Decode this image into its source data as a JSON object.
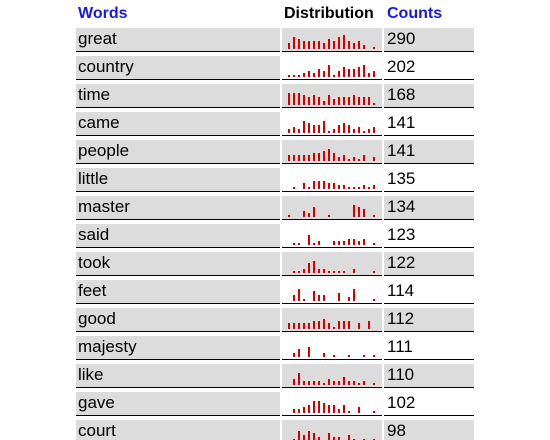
{
  "header": {
    "words": "Words",
    "distribution": "Distribution",
    "counts": "Counts"
  },
  "colors": {
    "header_accent": "#1a1ad6",
    "bar": "#d40000",
    "shaded_row": "#dcdcdc"
  },
  "rows": [
    {
      "word": "great",
      "count": "290",
      "dist": [
        3,
        6,
        5,
        4,
        4,
        4,
        4,
        3,
        5,
        4,
        6,
        7,
        4,
        3,
        4,
        2,
        0,
        1
      ]
    },
    {
      "word": "country",
      "count": "202",
      "dist": [
        1,
        1,
        1,
        2,
        3,
        2,
        4,
        3,
        6,
        1,
        3,
        5,
        4,
        4,
        5,
        6,
        2,
        3
      ]
    },
    {
      "word": "time",
      "count": "168",
      "dist": [
        6,
        6,
        6,
        5,
        4,
        5,
        4,
        2,
        5,
        3,
        4,
        4,
        4,
        5,
        4,
        4,
        4,
        1
      ]
    },
    {
      "word": "came",
      "count": "141",
      "dist": [
        2,
        3,
        2,
        6,
        5,
        4,
        4,
        6,
        1,
        2,
        4,
        5,
        4,
        2,
        3,
        1,
        2,
        3
      ]
    },
    {
      "word": "people",
      "count": "141",
      "dist": [
        3,
        3,
        3,
        3,
        3,
        4,
        4,
        5,
        6,
        4,
        2,
        3,
        1,
        2,
        1,
        3,
        0,
        2
      ]
    },
    {
      "word": "little",
      "count": "135",
      "dist": [
        0,
        1,
        0,
        3,
        1,
        4,
        4,
        4,
        3,
        3,
        2,
        2,
        1,
        1,
        1,
        2,
        1,
        2
      ]
    },
    {
      "word": "master",
      "count": "134",
      "dist": [
        1,
        0,
        0,
        3,
        2,
        5,
        0,
        0,
        1,
        0,
        0,
        0,
        0,
        6,
        5,
        4,
        0,
        1
      ]
    },
    {
      "word": "said",
      "count": "123",
      "dist": [
        0,
        1,
        1,
        0,
        5,
        1,
        2,
        0,
        0,
        2,
        2,
        2,
        3,
        3,
        2,
        3,
        0,
        1
      ]
    },
    {
      "word": "took",
      "count": "122",
      "dist": [
        0,
        1,
        1,
        2,
        5,
        6,
        2,
        2,
        1,
        1,
        1,
        1,
        0,
        2,
        0,
        0,
        0,
        1
      ]
    },
    {
      "word": "feet",
      "count": "114",
      "dist": [
        0,
        3,
        6,
        1,
        0,
        5,
        3,
        3,
        0,
        0,
        4,
        0,
        2,
        6,
        0,
        0,
        0,
        1
      ]
    },
    {
      "word": "good",
      "count": "112",
      "dist": [
        3,
        3,
        3,
        3,
        3,
        4,
        4,
        5,
        3,
        1,
        4,
        4,
        4,
        0,
        3,
        0,
        4,
        0
      ]
    },
    {
      "word": "majesty",
      "count": "111",
      "dist": [
        0,
        2,
        4,
        0,
        5,
        0,
        0,
        2,
        0,
        1,
        0,
        0,
        1,
        0,
        0,
        1,
        0,
        1
      ]
    },
    {
      "word": "like",
      "count": "110",
      "dist": [
        0,
        3,
        6,
        2,
        2,
        2,
        2,
        1,
        3,
        2,
        2,
        4,
        2,
        2,
        1,
        2,
        0,
        1
      ]
    },
    {
      "word": "gave",
      "count": "102",
      "dist": [
        0,
        2,
        2,
        3,
        4,
        6,
        6,
        5,
        4,
        4,
        2,
        4,
        1,
        0,
        3,
        0,
        0,
        1
      ]
    },
    {
      "word": "court",
      "count": "98",
      "dist": [
        0,
        1,
        5,
        3,
        5,
        4,
        2,
        0,
        4,
        2,
        2,
        0,
        3,
        1,
        0,
        1,
        0,
        1
      ]
    }
  ]
}
